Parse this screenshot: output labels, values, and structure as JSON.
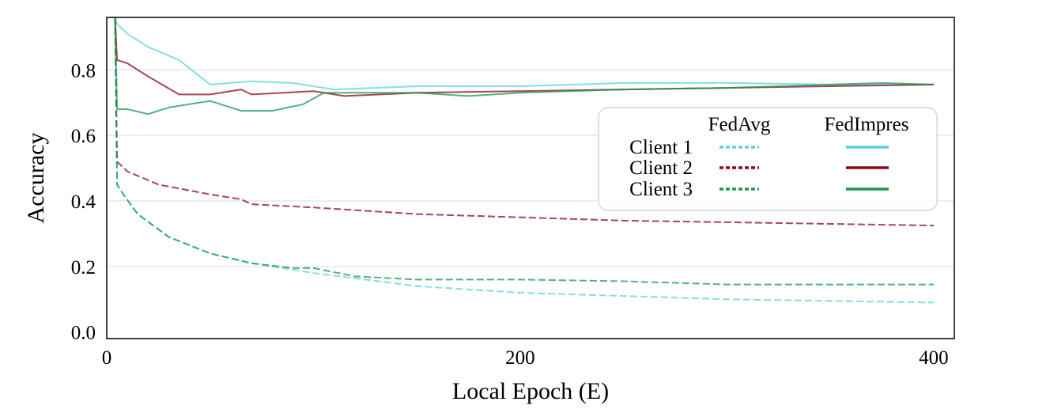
{
  "chart_data": {
    "type": "line",
    "xlabel": "Local Epoch (E)",
    "ylabel": "Accuracy",
    "xlim": [
      0,
      410
    ],
    "ylim": [
      -0.02,
      0.96
    ],
    "xticks": [
      0,
      200,
      400
    ],
    "xtick_labels": [
      "0",
      "200",
      "400"
    ],
    "yticks": [
      0.0,
      0.2,
      0.4,
      0.6,
      0.8
    ],
    "ytick_labels": [
      "0.0",
      "0.2",
      "0.4",
      "0.6",
      "0.8"
    ],
    "grid": true,
    "legend": {
      "placement": "center-right",
      "column_headers": [
        "FedAvg",
        "FedImpres"
      ],
      "row_labels": [
        "Client 1",
        "Client 2",
        "Client 3"
      ]
    },
    "series": [
      {
        "name": "Client 1",
        "method": "FedAvg",
        "color": "#5bd3dc",
        "dashed": true,
        "x": [
          4,
          5,
          8,
          15,
          30,
          50,
          70,
          100,
          150,
          200,
          250,
          300,
          350,
          400
        ],
        "y": [
          0.96,
          0.45,
          0.42,
          0.36,
          0.29,
          0.24,
          0.21,
          0.18,
          0.14,
          0.12,
          0.11,
          0.1,
          0.095,
          0.09
        ]
      },
      {
        "name": "Client 2",
        "method": "FedAvg",
        "color": "#8b0a1a",
        "dashed": true,
        "x": [
          4,
          5,
          10,
          25,
          50,
          65,
          70,
          100,
          150,
          200,
          250,
          300,
          350,
          400
        ],
        "y": [
          0.96,
          0.52,
          0.49,
          0.45,
          0.42,
          0.405,
          0.39,
          0.38,
          0.36,
          0.35,
          0.34,
          0.335,
          0.33,
          0.325
        ]
      },
      {
        "name": "Client 3",
        "method": "FedAvg",
        "color": "#1a9850",
        "dashed": true,
        "x": [
          4,
          5,
          8,
          15,
          30,
          50,
          70,
          90,
          100,
          120,
          150,
          200,
          250,
          300,
          350,
          400
        ],
        "y": [
          0.96,
          0.45,
          0.42,
          0.36,
          0.29,
          0.24,
          0.21,
          0.195,
          0.195,
          0.17,
          0.16,
          0.16,
          0.155,
          0.145,
          0.145,
          0.145
        ]
      },
      {
        "name": "Client 1",
        "method": "FedImpres",
        "color": "#5bd3dc",
        "dashed": false,
        "x": [
          4,
          5,
          10,
          20,
          35,
          50,
          70,
          90,
          110,
          150,
          200,
          250,
          300,
          350,
          400
        ],
        "y": [
          0.96,
          0.94,
          0.91,
          0.87,
          0.83,
          0.755,
          0.765,
          0.76,
          0.74,
          0.75,
          0.75,
          0.76,
          0.76,
          0.755,
          0.755
        ]
      },
      {
        "name": "Client 2",
        "method": "FedImpres",
        "color": "#8b0a1a",
        "dashed": false,
        "x": [
          4,
          5,
          10,
          20,
          35,
          50,
          65,
          70,
          100,
          115,
          150,
          200,
          250,
          300,
          350,
          400
        ],
        "y": [
          0.96,
          0.83,
          0.82,
          0.78,
          0.725,
          0.725,
          0.74,
          0.725,
          0.735,
          0.72,
          0.73,
          0.735,
          0.74,
          0.745,
          0.75,
          0.755
        ]
      },
      {
        "name": "Client 3",
        "method": "FedImpres",
        "color": "#1a9850",
        "dashed": false,
        "x": [
          4,
          5,
          10,
          20,
          30,
          50,
          65,
          80,
          95,
          105,
          150,
          175,
          200,
          250,
          300,
          350,
          375,
          400
        ],
        "y": [
          0.96,
          0.68,
          0.68,
          0.665,
          0.685,
          0.705,
          0.675,
          0.675,
          0.695,
          0.73,
          0.73,
          0.72,
          0.73,
          0.74,
          0.745,
          0.755,
          0.76,
          0.755
        ]
      }
    ]
  }
}
